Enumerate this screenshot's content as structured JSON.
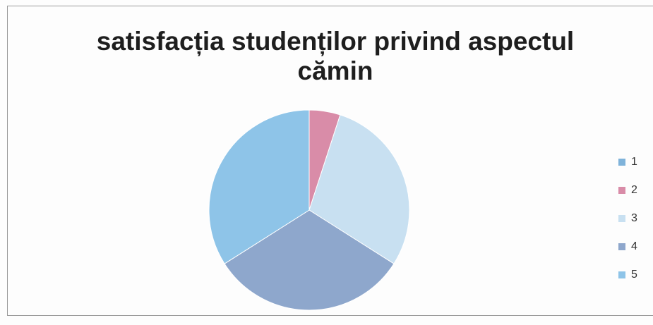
{
  "chart_data": {
    "type": "pie",
    "title": "satisfacția studenților privind aspectul cămin",
    "categories": [
      "1",
      "2",
      "3",
      "4",
      "5"
    ],
    "values": [
      0,
      5,
      29,
      32,
      34
    ],
    "colors": [
      "#7fb3da",
      "#d98ca8",
      "#c8e0f1",
      "#8ea7cc",
      "#8ec4e8"
    ],
    "legend": "right"
  }
}
